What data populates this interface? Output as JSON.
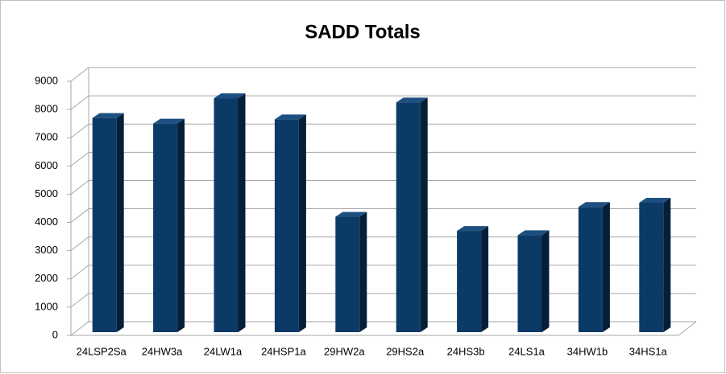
{
  "chart_data": {
    "type": "bar3d",
    "title": "SADD Totals",
    "categories": [
      "24LSP2Sa",
      "24HW3a",
      "24LW1a",
      "24HSP1a",
      "29HW2a",
      "29HS2a",
      "24HS3b",
      "24LS1a",
      "34HW1b",
      "34HS1a"
    ],
    "values": [
      7700,
      7500,
      8400,
      7650,
      4200,
      8250,
      3700,
      3550,
      4550,
      4700
    ],
    "color": "#0b3a66",
    "ylim": [
      0,
      9000
    ],
    "yticks": [
      0,
      1000,
      2000,
      3000,
      4000,
      5000,
      6000,
      7000,
      8000,
      9000
    ],
    "grid": true
  }
}
